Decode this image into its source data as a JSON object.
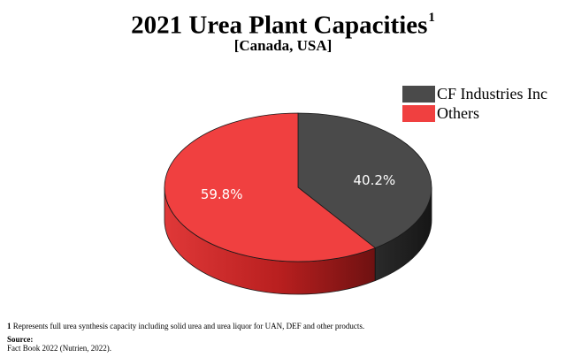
{
  "chart_data": {
    "type": "pie",
    "title": "2021 Urea Plant Capacities",
    "title_footnote_mark": "1",
    "subtitle": "[Canada, USA]",
    "legend_position": "right",
    "slices": [
      {
        "label": "CF Industries Inc",
        "value": 40.2,
        "value_label": "40.2%",
        "color": "#4a4a4a"
      },
      {
        "label": "Others",
        "value": 59.8,
        "value_label": "59.8%",
        "color": "#f04040"
      }
    ]
  },
  "footnote": {
    "marker": "1",
    "text": "Represents full urea synthesis capacity including solid urea and urea liquor for UAN, DEF and other products."
  },
  "source": {
    "heading": "Source:",
    "text": "Fact Book 2022 (Nutrien, 2022)."
  }
}
